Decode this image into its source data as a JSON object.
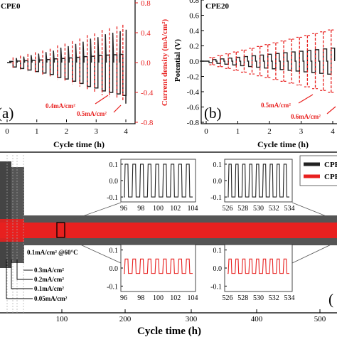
{
  "panels": {
    "a": {
      "title": "CPE0",
      "label": "(a)",
      "x_label": "Cycle time (h)",
      "right_y_label": "Current density (mA/cm²)",
      "x_ticks": [
        "0",
        "1",
        "2",
        "3",
        "4"
      ],
      "right_y_ticks": [
        "0.8",
        "0.4",
        "0.0",
        "-0.4",
        "-0.8"
      ],
      "annotations": [
        "0.4mA/cm²",
        "0.5mA/cm²"
      ]
    },
    "b": {
      "title": "CPE20",
      "label": "(b)",
      "x_label": "Cycle time (h)",
      "y_label": "Potential (V)",
      "x_ticks": [
        "0",
        "1",
        "2",
        "3",
        "4"
      ],
      "y_ticks": [
        "0.8",
        "0.6",
        "0.4",
        "0.2",
        "0.0",
        "-0.2",
        "-0.4",
        "-0.6",
        "-0.8"
      ],
      "annotations": [
        "0.5mA/cm²",
        "0.6mA/cm²"
      ]
    },
    "c": {
      "label": "(",
      "x_label": "Cycle time (h)",
      "x_ticks": [
        "100",
        "200",
        "300",
        "400",
        "500"
      ],
      "legend": [
        "CPE",
        "CPE"
      ],
      "condition": "0.1mA/cm² @60°C",
      "rate_labels": [
        "0.3mA/cm²",
        "0.2mA/cm²",
        "0.1mA/cm²",
        "0.05mA/cm²"
      ],
      "inset_x_ticks_1": [
        "96",
        "98",
        "100",
        "102",
        "104"
      ],
      "inset_x_ticks_2": [
        "526",
        "528",
        "530",
        "532",
        "534"
      ],
      "inset_y_ticks": [
        "0.1",
        "0.0",
        "-0.1"
      ]
    }
  },
  "colors": {
    "black_series": "#222222",
    "red_series": "#e8201f",
    "gray_band": "#555555"
  },
  "chart_data": [
    {
      "type": "line",
      "title": "CPE0",
      "xlabel": "Cycle time (h)",
      "ylabel": "Current density (mA/cm²)",
      "xlim": [
        -0.3,
        4.3
      ],
      "ylim": [
        -0.8,
        0.8
      ],
      "series": [
        {
          "role": "potential",
          "x": [
            0.2,
            0.45,
            0.7,
            0.95,
            1.2,
            1.45,
            1.7,
            1.95,
            2.2,
            2.45,
            2.7,
            2.95,
            3.2,
            3.45,
            3.7,
            3.9
          ],
          "amplitude": [
            0.06,
            0.08,
            0.1,
            0.12,
            0.14,
            0.16,
            0.2,
            0.22,
            0.25,
            0.28,
            0.32,
            0.34,
            0.38,
            0.4,
            0.42,
            0.44
          ]
        }
      ]
    },
    {
      "type": "line",
      "title": "CPE20",
      "xlabel": "Cycle time (h)",
      "ylabel": "Potential (V)",
      "xlim": [
        -0.3,
        4.3
      ],
      "ylim": [
        -0.8,
        0.8
      ],
      "series": [
        {
          "role": "potential",
          "x": [
            0.2,
            0.45,
            0.7,
            0.95,
            1.2,
            1.45,
            1.7,
            1.95,
            2.2,
            2.45,
            2.7,
            2.95,
            3.2,
            3.45,
            3.7,
            3.95
          ],
          "amplitude": [
            0.02,
            0.03,
            0.04,
            0.05,
            0.06,
            0.07,
            0.08,
            0.09,
            0.1,
            0.11,
            0.12,
            0.13,
            0.14,
            0.15,
            0.16,
            0.17
          ]
        }
      ]
    },
    {
      "type": "line",
      "xlabel": "Cycle time (h)",
      "xlim": [
        0,
        560
      ],
      "series": [
        {
          "role": "CPE black",
          "band": [
            -0.12,
            0.12
          ]
        },
        {
          "role": "CPE red",
          "band": [
            -0.06,
            0.06
          ]
        }
      ]
    }
  ]
}
